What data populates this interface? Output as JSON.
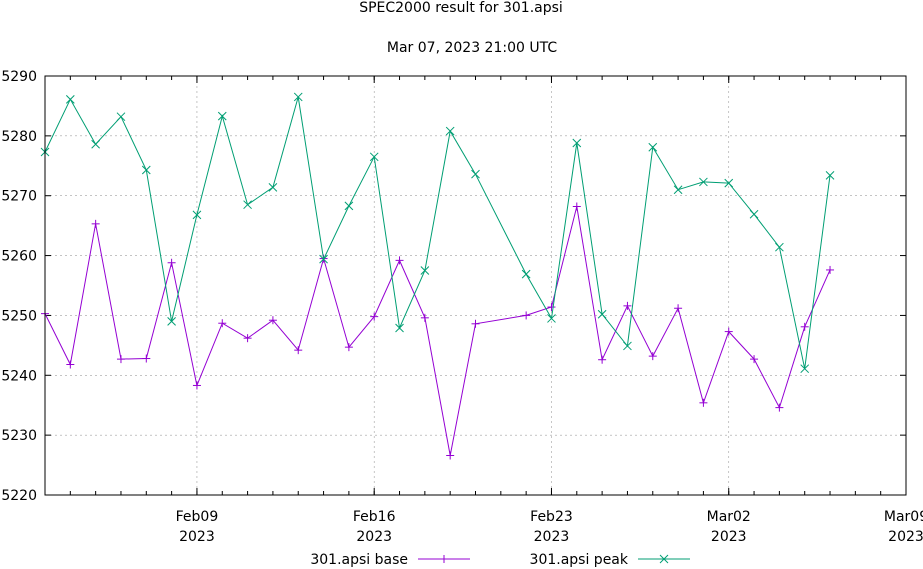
{
  "title": "SPEC2000 result for 301.apsi",
  "subtitle": "Mar 07, 2023 21:00 UTC",
  "chart_data": {
    "type": "line",
    "title": "SPEC2000 result for 301.apsi",
    "subtitle": "Mar 07, 2023 21:00 UTC",
    "xlabel": "",
    "ylabel": "",
    "xlim": [
      "2023-02-03",
      "2023-03-09"
    ],
    "ylim": [
      5220,
      5290
    ],
    "y_ticks": [
      5220,
      5230,
      5240,
      5250,
      5260,
      5270,
      5280,
      5290
    ],
    "x_ticks": [
      {
        "date": "2023-02-09",
        "label1": "Feb09",
        "label2": "2023"
      },
      {
        "date": "2023-02-16",
        "label1": "Feb16",
        "label2": "2023"
      },
      {
        "date": "2023-02-23",
        "label1": "Feb23",
        "label2": "2023"
      },
      {
        "date": "2023-03-02",
        "label1": "Mar02",
        "label2": "2023"
      },
      {
        "date": "2023-03-09",
        "label1": "Mar09",
        "label2": "2023"
      }
    ],
    "grid": true,
    "legend_position": "bottom",
    "series": [
      {
        "name": "301.apsi base",
        "color": "#9400d3",
        "marker": "plus",
        "points": [
          [
            "2023-02-03",
            5250.3
          ],
          [
            "2023-02-04",
            5241.8
          ],
          [
            "2023-02-05",
            5265.3
          ],
          [
            "2023-02-06",
            5242.7
          ],
          [
            "2023-02-07",
            5242.8
          ],
          [
            "2023-02-08",
            5258.8
          ],
          [
            "2023-02-09",
            5238.3
          ],
          [
            "2023-02-10",
            5248.7
          ],
          [
            "2023-02-11",
            5246.2
          ],
          [
            "2023-02-12",
            5249.2
          ],
          [
            "2023-02-13",
            5244.2
          ],
          [
            "2023-02-14",
            5259.5
          ],
          [
            "2023-02-15",
            5244.7
          ],
          [
            "2023-02-16",
            5249.8
          ],
          [
            "2023-02-17",
            5259.2
          ],
          [
            "2023-02-18",
            5249.6
          ],
          [
            "2023-02-19",
            5226.6
          ],
          [
            "2023-02-20",
            5248.6
          ],
          [
            "2023-02-22",
            5250.0
          ],
          [
            "2023-02-23",
            5251.4
          ],
          [
            "2023-02-24",
            5268.2
          ],
          [
            "2023-02-25",
            5242.6
          ],
          [
            "2023-02-26",
            5251.6
          ],
          [
            "2023-02-27",
            5243.2
          ],
          [
            "2023-02-28",
            5251.2
          ],
          [
            "2023-03-01",
            5235.4
          ],
          [
            "2023-03-02",
            5247.3
          ],
          [
            "2023-03-03",
            5242.7
          ],
          [
            "2023-03-04",
            5234.6
          ],
          [
            "2023-03-05",
            5248.1
          ],
          [
            "2023-03-06",
            5257.6
          ]
        ]
      },
      {
        "name": "301.apsi peak",
        "color": "#009e73",
        "marker": "cross",
        "points": [
          [
            "2023-02-03",
            5277.3
          ],
          [
            "2023-02-04",
            5286.1
          ],
          [
            "2023-02-05",
            5278.6
          ],
          [
            "2023-02-06",
            5283.2
          ],
          [
            "2023-02-07",
            5274.3
          ],
          [
            "2023-02-08",
            5249.0
          ],
          [
            "2023-02-09",
            5266.8
          ],
          [
            "2023-02-10",
            5283.3
          ],
          [
            "2023-02-11",
            5268.5
          ],
          [
            "2023-02-12",
            5271.4
          ],
          [
            "2023-02-13",
            5286.5
          ],
          [
            "2023-02-14",
            5259.4
          ],
          [
            "2023-02-15",
            5268.3
          ],
          [
            "2023-02-16",
            5276.5
          ],
          [
            "2023-02-17",
            5247.9
          ],
          [
            "2023-02-18",
            5257.5
          ],
          [
            "2023-02-19",
            5280.8
          ],
          [
            "2023-02-20",
            5273.6
          ],
          [
            "2023-02-22",
            5256.9
          ],
          [
            "2023-02-23",
            5249.5
          ],
          [
            "2023-02-24",
            5278.8
          ],
          [
            "2023-02-25",
            5250.2
          ],
          [
            "2023-02-26",
            5244.9
          ],
          [
            "2023-02-27",
            5278.1
          ],
          [
            "2023-02-28",
            5271.0
          ],
          [
            "2023-03-01",
            5272.3
          ],
          [
            "2023-03-02",
            5272.1
          ],
          [
            "2023-03-03",
            5266.9
          ],
          [
            "2023-03-04",
            5261.4
          ],
          [
            "2023-03-05",
            5241.1
          ],
          [
            "2023-03-06",
            5273.4
          ]
        ]
      }
    ]
  }
}
